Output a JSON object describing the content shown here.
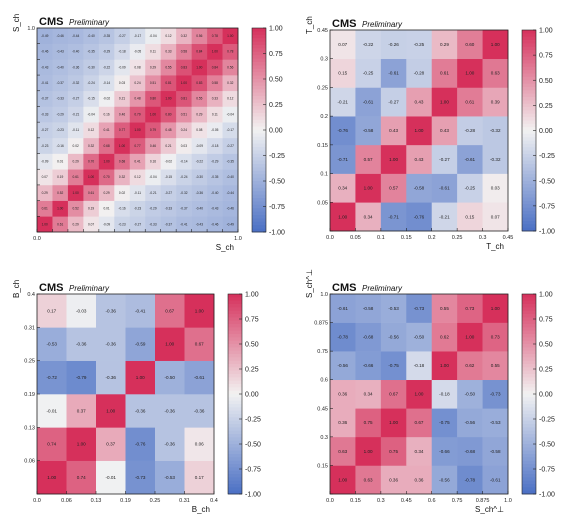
{
  "colors": {
    "neg": "#4a6fc4",
    "mid": "#f2f2f2",
    "pos": "#d6305b",
    "frame": "#222222"
  },
  "chart_data": [
    {
      "type": "heatmap",
      "title": "CMS",
      "subtitle": "Preliminary",
      "xlabel": "S_ch",
      "ylabel": "S_ch",
      "x_edges": [
        "0.0",
        "0.1",
        "0.15",
        "0.2",
        "0.25",
        "0.3",
        "0.35",
        "0.4",
        "0.45",
        "0.5",
        "0.55",
        "0.6",
        "0.7",
        "1.0"
      ],
      "x_tick_labels": [
        "0.0",
        "",
        "",
        "",
        "",
        "",
        "",
        "",
        "",
        "",
        "",
        "",
        "",
        "1.0"
      ],
      "y_tick_labels": [
        "",
        "",
        "",
        "",
        "",
        "",
        "",
        "",
        "",
        "",
        "",
        "",
        "",
        "1.0"
      ],
      "colorbar": {
        "min": -1.0,
        "max": 1.0,
        "ticks": [
          "1.00",
          "0.75",
          "0.50",
          "0.25",
          "0.00",
          "-0.25",
          "-0.50",
          "-0.75",
          "-1.00"
        ]
      },
      "values": [
        [
          1.0,
          0.61,
          0.29,
          0.07,
          -0.09,
          -0.23,
          -0.27,
          -0.33,
          -0.37,
          -0.41,
          -0.43,
          -0.46,
          -0.49
        ],
        [
          0.61,
          1.0,
          0.52,
          0.19,
          0.01,
          -0.16,
          -0.23,
          -0.29,
          -0.33,
          -0.37,
          -0.4,
          -0.43,
          -0.46
        ],
        [
          0.29,
          0.52,
          1.0,
          0.61,
          0.29,
          0.02,
          -0.11,
          -0.21,
          -0.27,
          -0.32,
          -0.36,
          -0.4,
          -0.44
        ],
        [
          0.07,
          0.19,
          0.61,
          1.0,
          0.7,
          0.32,
          0.12,
          -0.04,
          -0.15,
          -0.24,
          -0.3,
          -0.35,
          -0.4
        ],
        [
          -0.09,
          0.01,
          0.29,
          0.7,
          1.0,
          0.68,
          0.41,
          0.16,
          -0.02,
          -0.14,
          -0.22,
          -0.29,
          -0.35
        ],
        [
          -0.23,
          -0.16,
          0.02,
          0.32,
          0.68,
          1.0,
          0.77,
          0.46,
          0.21,
          0.03,
          -0.09,
          -0.18,
          -0.27
        ],
        [
          -0.27,
          -0.23,
          -0.11,
          0.12,
          0.41,
          0.77,
          1.0,
          0.79,
          0.48,
          0.24,
          0.08,
          -0.05,
          -0.17
        ],
        [
          -0.33,
          -0.29,
          -0.21,
          -0.04,
          0.16,
          0.46,
          0.79,
          1.0,
          0.8,
          0.51,
          0.29,
          0.11,
          -0.04
        ],
        [
          -0.37,
          -0.33,
          -0.27,
          -0.15,
          -0.02,
          0.21,
          0.48,
          0.8,
          1.0,
          0.81,
          0.55,
          0.33,
          0.12
        ],
        [
          -0.41,
          -0.37,
          -0.32,
          -0.24,
          -0.14,
          0.03,
          0.24,
          0.51,
          0.81,
          1.0,
          0.83,
          0.58,
          0.32
        ],
        [
          -0.43,
          -0.4,
          -0.36,
          -0.3,
          -0.22,
          -0.09,
          0.08,
          0.29,
          0.55,
          0.83,
          1.0,
          0.84,
          0.56
        ],
        [
          -0.46,
          -0.43,
          -0.4,
          -0.35,
          -0.29,
          -0.18,
          -0.05,
          0.11,
          0.33,
          0.58,
          0.84,
          1.0,
          0.78
        ],
        [
          -0.49,
          -0.46,
          -0.44,
          -0.4,
          -0.35,
          -0.27,
          -0.17,
          -0.04,
          0.12,
          0.32,
          0.56,
          0.78,
          1.0
        ]
      ]
    },
    {
      "type": "heatmap",
      "title": "CMS",
      "subtitle": "Preliminary",
      "xlabel": "T_ch",
      "ylabel": "T_ch",
      "x_tick_labels": [
        "0.0",
        "0.05",
        "0.1",
        "0.15",
        "0.2",
        "0.25",
        "0.3",
        "0.45"
      ],
      "y_tick_labels": [
        "",
        "0.05",
        "0.1",
        "0.15",
        "0.2",
        "0.25",
        "0.3",
        "0.45"
      ],
      "colorbar": {
        "min": -1.0,
        "max": 1.0,
        "ticks": [
          "1.00",
          "0.75",
          "0.50",
          "0.25",
          "0.00",
          "-0.25",
          "-0.50",
          "-0.75",
          "-1.00"
        ]
      },
      "values": [
        [
          1.0,
          0.34,
          -0.71,
          -0.76,
          -0.21,
          0.15,
          0.07
        ],
        [
          0.34,
          1.0,
          0.57,
          -0.58,
          -0.61,
          -0.25,
          0.03
        ],
        [
          -0.71,
          0.57,
          1.0,
          0.43,
          -0.27,
          -0.61,
          -0.32
        ],
        [
          -0.76,
          -0.58,
          0.43,
          1.0,
          0.43,
          -0.28,
          -0.32
        ],
        [
          -0.21,
          -0.61,
          -0.27,
          0.43,
          1.0,
          0.61,
          0.39
        ],
        [
          0.15,
          -0.25,
          -0.61,
          -0.28,
          0.61,
          1.0,
          0.63
        ],
        [
          0.07,
          -0.22,
          -0.26,
          -0.25,
          0.29,
          0.6,
          1.0
        ]
      ]
    },
    {
      "type": "heatmap",
      "title": "CMS",
      "subtitle": "Preliminary",
      "xlabel": "B_ch",
      "ylabel": "B_ch",
      "x_tick_labels": [
        "0.0",
        "0.06",
        "0.13",
        "0.19",
        "0.25",
        "0.31",
        "0.4"
      ],
      "y_tick_labels": [
        "",
        "0.06",
        "0.13",
        "0.19",
        "0.25",
        "0.31",
        "0.4"
      ],
      "colorbar": {
        "min": -1.0,
        "max": 1.0,
        "ticks": [
          "1.00",
          "0.75",
          "0.50",
          "0.25",
          "0.00",
          "-0.25",
          "-0.50",
          "-0.75",
          "-1.00"
        ]
      },
      "values": [
        [
          1.0,
          0.74,
          -0.01,
          -0.73,
          -0.53,
          0.17
        ],
        [
          0.74,
          1.0,
          0.37,
          -0.76,
          -0.36,
          0.06
        ],
        [
          -0.01,
          0.37,
          1.0,
          -0.36,
          -0.36,
          -0.36
        ],
        [
          -0.72,
          -0.79,
          -0.36,
          1.0,
          -0.5,
          -0.61
        ],
        [
          -0.53,
          -0.36,
          -0.36,
          -0.59,
          1.0,
          0.67
        ],
        [
          0.17,
          -0.03,
          -0.36,
          -0.41,
          0.67,
          1.0
        ]
      ]
    },
    {
      "type": "heatmap",
      "title": "CMS",
      "subtitle": "Preliminary",
      "xlabel": "S_ch^⊥",
      "ylabel": "S_ch^⊥",
      "x_tick_labels": [
        "0.0",
        "0.15",
        "0.3",
        "0.45",
        "0.6",
        "0.75",
        "0.875",
        "1.0"
      ],
      "y_tick_labels": [
        "",
        "0.15",
        "0.3",
        "0.45",
        "0.6",
        "0.75",
        "0.875",
        "1.0"
      ],
      "colorbar": {
        "min": -1.0,
        "max": 1.0,
        "ticks": [
          "1.00",
          "0.75",
          "0.50",
          "0.25",
          "0.00",
          "-0.25",
          "-0.50",
          "-0.75",
          "-1.00"
        ]
      },
      "values": [
        [
          1.0,
          0.63,
          0.36,
          0.36,
          -0.56,
          -0.78,
          -0.61
        ],
        [
          0.63,
          1.0,
          0.75,
          0.34,
          -0.66,
          -0.68,
          -0.58
        ],
        [
          0.36,
          0.75,
          1.0,
          0.67,
          -0.75,
          -0.56,
          -0.53
        ],
        [
          0.36,
          0.34,
          0.67,
          1.0,
          -0.18,
          -0.5,
          -0.73
        ],
        [
          -0.56,
          -0.66,
          -0.75,
          -0.18,
          1.0,
          0.62,
          0.55
        ],
        [
          -0.78,
          -0.68,
          -0.56,
          -0.5,
          0.62,
          1.0,
          0.73
        ],
        [
          -0.61,
          -0.58,
          -0.53,
          -0.73,
          0.55,
          0.73,
          1.0
        ]
      ]
    }
  ]
}
